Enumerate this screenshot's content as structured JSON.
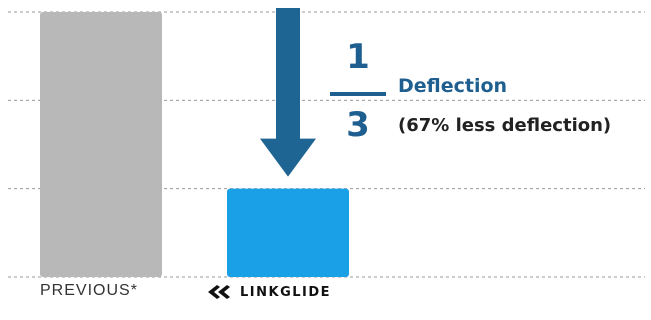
{
  "chart_data": {
    "type": "bar",
    "categories": [
      "PREVIOUS*",
      "LINKGLIDE"
    ],
    "values": [
      3,
      1
    ],
    "ylim": [
      0,
      3
    ],
    "grid": true,
    "colors": [
      "#b8b8b8",
      "#1aa0e6"
    ],
    "arrow_color": "#1f6594",
    "annotation": {
      "numerator": "1",
      "denominator": "3",
      "label": "Deflection",
      "sublabel": "(67% less deflection)"
    }
  }
}
